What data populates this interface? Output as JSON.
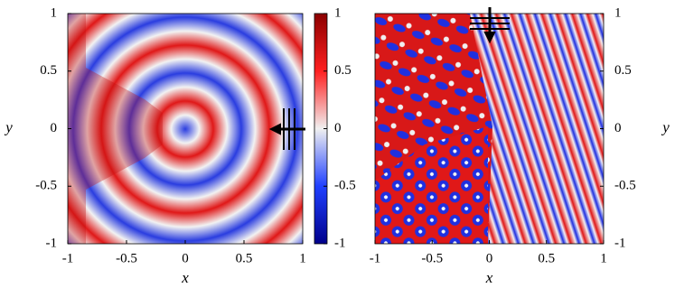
{
  "chart_data": [
    {
      "type": "heatmap",
      "xlabel": "x",
      "ylabel": "y",
      "xlim": [
        -1,
        1
      ],
      "ylim": [
        -1,
        1
      ],
      "xticks": [
        -1,
        -0.5,
        0,
        0.5,
        1
      ],
      "yticks": [
        -1,
        -0.5,
        0,
        0.5,
        1
      ],
      "colorbar": {
        "lim": [
          -1,
          1
        ],
        "ticks": [
          -1,
          -0.5,
          0,
          0.5,
          1
        ]
      }
    },
    {
      "type": "heatmap",
      "xlabel": "x",
      "ylabel": "y",
      "xlim": [
        -1,
        1
      ],
      "ylim": [
        -1,
        1
      ],
      "xticks": [
        -1,
        -0.5,
        0,
        0.5,
        1
      ],
      "yticks": [
        -1,
        -0.5,
        0,
        0.5,
        1
      ]
    }
  ]
}
